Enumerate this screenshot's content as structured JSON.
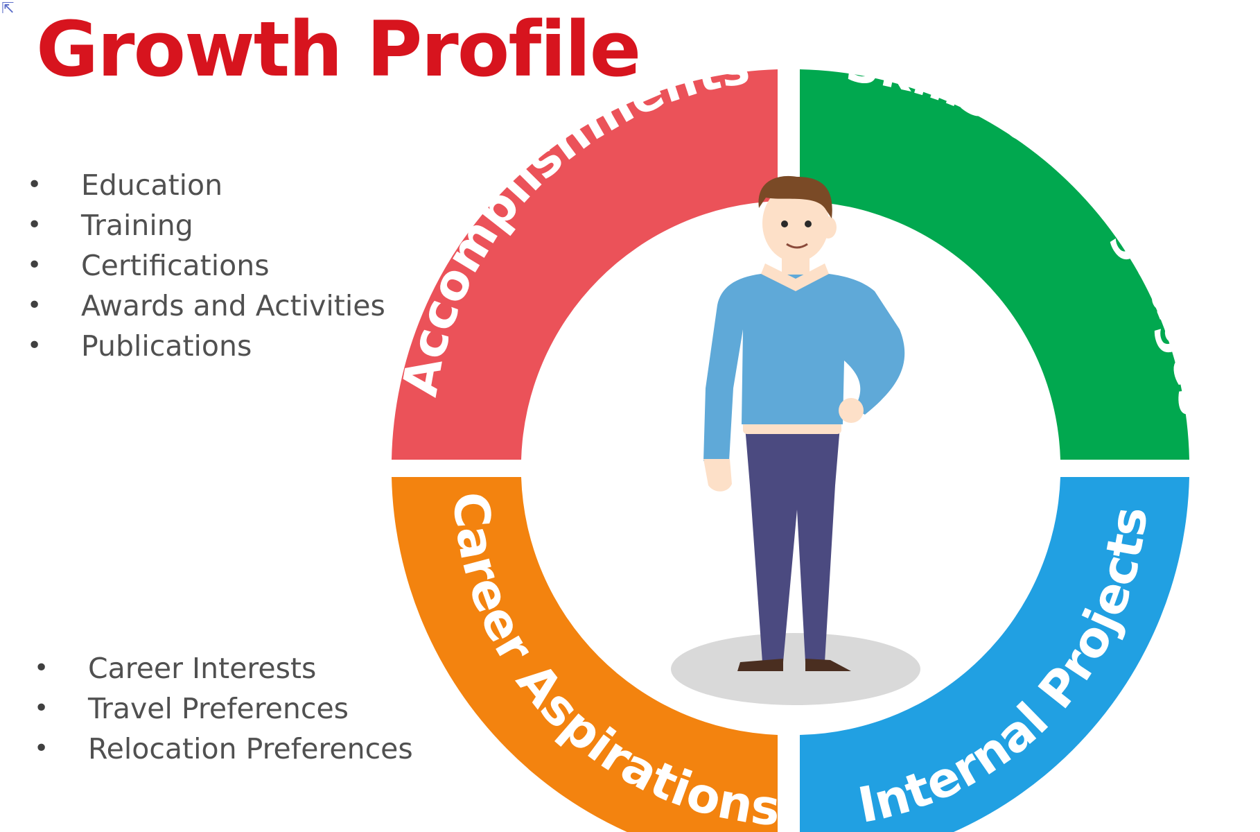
{
  "title": "Growth Profile",
  "colors": {
    "title": "#d7141e",
    "accomplishments": "#eb5259",
    "skills": "#01a84f",
    "career": "#f3830f",
    "internal": "#21a0e2",
    "shirt": "#5fa9d8",
    "pants": "#4b4a80",
    "skin": "#fde0c8",
    "hair": "#7a4a26",
    "shadow": "#d9d9d9"
  },
  "list_top": {
    "items": [
      "Education",
      "Training",
      "Certifications",
      "Awards and Activities",
      "Publications"
    ]
  },
  "list_bottom": {
    "items": [
      "Career Interests",
      "Travel Preferences",
      "Relocation Preferences"
    ]
  },
  "wheel": {
    "segments": [
      {
        "label": "Accomplishments",
        "color_key": "accomplishments"
      },
      {
        "label": "Skills & Languages",
        "color_key": "skills"
      },
      {
        "label": "Career Aspirations",
        "color_key": "career"
      },
      {
        "label": "Internal Projects",
        "color_key": "internal"
      }
    ]
  },
  "icons": {
    "corner": "cursor-icon",
    "center": "person-figure"
  }
}
